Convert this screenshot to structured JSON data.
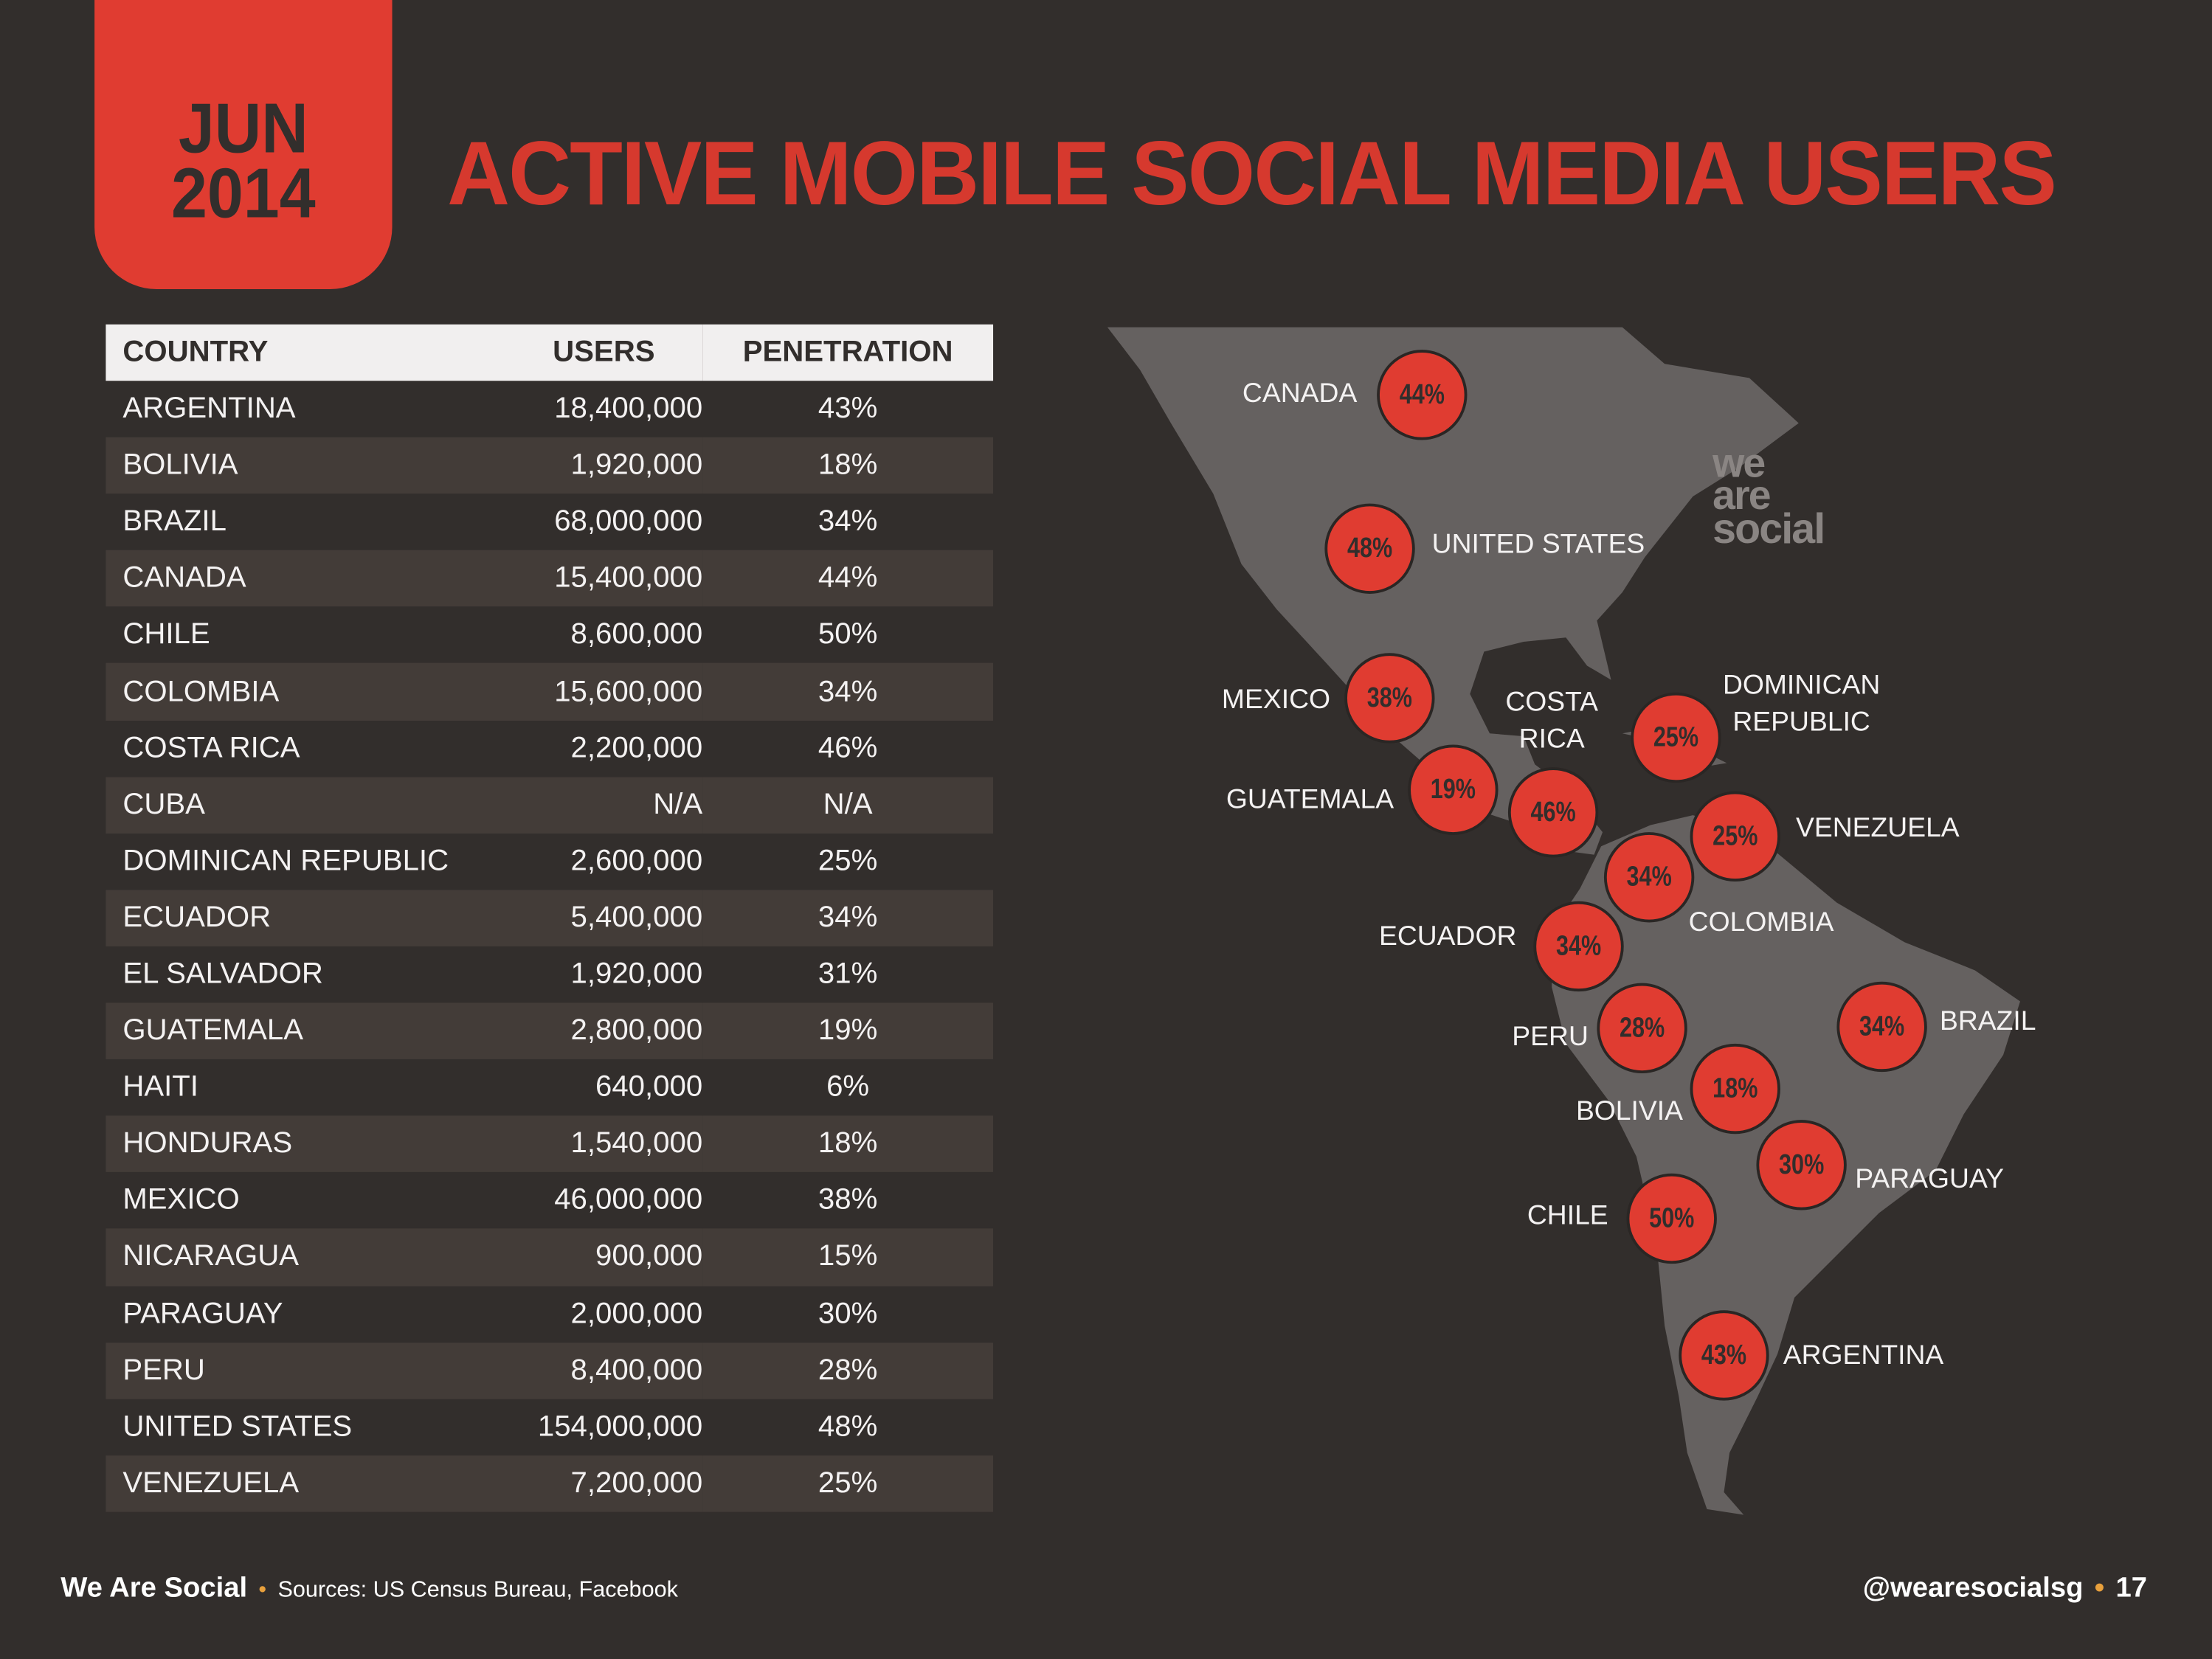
{
  "badge": {
    "month": "JUN",
    "year": "2014"
  },
  "title": "ACTIVE MOBILE SOCIAL MEDIA USERS",
  "table": {
    "headers": [
      "COUNTRY",
      "USERS",
      "PENETRATION"
    ],
    "rows": [
      [
        "ARGENTINA",
        "18,400,000",
        "43%"
      ],
      [
        "BOLIVIA",
        "1,920,000",
        "18%"
      ],
      [
        "BRAZIL",
        "68,000,000",
        "34%"
      ],
      [
        "CANADA",
        "15,400,000",
        "44%"
      ],
      [
        "CHILE",
        "8,600,000",
        "50%"
      ],
      [
        "COLOMBIA",
        "15,600,000",
        "34%"
      ],
      [
        "COSTA RICA",
        "2,200,000",
        "46%"
      ],
      [
        "CUBA",
        "N/A",
        "N/A"
      ],
      [
        "DOMINICAN REPUBLIC",
        "2,600,000",
        "25%"
      ],
      [
        "ECUADOR",
        "5,400,000",
        "34%"
      ],
      [
        "EL SALVADOR",
        "1,920,000",
        "31%"
      ],
      [
        "GUATEMALA",
        "2,800,000",
        "19%"
      ],
      [
        "HAITI",
        "640,000",
        "6%"
      ],
      [
        "HONDURAS",
        "1,540,000",
        "18%"
      ],
      [
        "MEXICO",
        "46,000,000",
        "38%"
      ],
      [
        "NICARAGUA",
        "900,000",
        "15%"
      ],
      [
        "PARAGUAY",
        "2,000,000",
        "30%"
      ],
      [
        "PERU",
        "8,400,000",
        "28%"
      ],
      [
        "UNITED STATES",
        "154,000,000",
        "48%"
      ],
      [
        "VENEZUELA",
        "7,200,000",
        "25%"
      ]
    ]
  },
  "map": {
    "watermark": [
      "we",
      "are",
      "social"
    ],
    "markers": [
      {
        "country": "CANADA",
        "value": "44%"
      },
      {
        "country": "UNITED STATES",
        "value": "48%"
      },
      {
        "country": "MEXICO",
        "value": "38%"
      },
      {
        "country": "GUATEMALA",
        "value": "19%"
      },
      {
        "country": "COSTA RICA",
        "value": "46%"
      },
      {
        "country": "DOMINICAN REPUBLIC",
        "value": "25%"
      },
      {
        "country": "VENEZUELA",
        "value": "25%"
      },
      {
        "country": "COLOMBIA",
        "value": "34%"
      },
      {
        "country": "ECUADOR",
        "value": "34%"
      },
      {
        "country": "PERU",
        "value": "28%"
      },
      {
        "country": "BRAZIL",
        "value": "34%"
      },
      {
        "country": "BOLIVIA",
        "value": "18%"
      },
      {
        "country": "PARAGUAY",
        "value": "30%"
      },
      {
        "country": "CHILE",
        "value": "50%"
      },
      {
        "country": "ARGENTINA",
        "value": "43%"
      }
    ]
  },
  "footer": {
    "brand": "We Are Social",
    "sources": "Sources: US Census Bureau, Facebook",
    "handle": "@wearesocialsg",
    "page": "17"
  },
  "colors": {
    "background": "#322e2c",
    "accent": "#e03c31",
    "land": "#656160"
  }
}
